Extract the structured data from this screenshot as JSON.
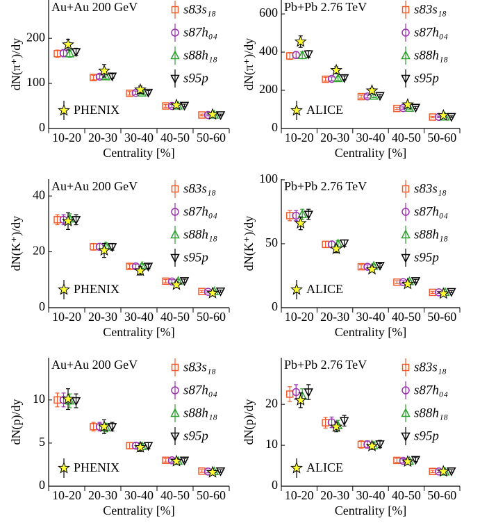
{
  "chart_data": [
    {
      "type": "errorbar",
      "annotation": "Au+Au 200 GeV",
      "ylabel": "dN(π⁺)/dy",
      "xlabel": "Centrality [%]",
      "categories": [
        "10-20",
        "20-30",
        "30-40",
        "40-50",
        "50-60"
      ],
      "ylim": [
        0,
        285
      ],
      "yticks": [
        0,
        100,
        200
      ],
      "series": [
        {
          "name": "s83s₁₈",
          "color": "#f05a28",
          "marker": "square",
          "values": [
            166,
            113,
            78,
            50,
            30
          ],
          "errors": [
            8,
            5,
            4,
            3,
            2
          ]
        },
        {
          "name": "s87h₀₄",
          "color": "#9b30b0",
          "marker": "circle",
          "values": [
            167,
            115,
            79,
            50,
            30
          ],
          "errors": [
            8,
            5,
            4,
            3,
            2
          ]
        },
        {
          "name": "s88h₁₈",
          "color": "#2ca02c",
          "marker": "triangle-up",
          "values": [
            166,
            115,
            79,
            50,
            30
          ],
          "errors": [
            8,
            5,
            4,
            3,
            2
          ]
        },
        {
          "name": "s95p",
          "color": "#000000",
          "marker": "triangle-down",
          "values": [
            170,
            116,
            80,
            51,
            30
          ],
          "errors": [
            8,
            5,
            4,
            3,
            2
          ]
        }
      ],
      "experiment": {
        "name": "PHENIX",
        "color": "#ffff33",
        "marker": "star",
        "values": [
          186,
          128,
          86,
          52,
          31
        ],
        "errors": [
          12,
          14,
          8,
          4,
          2
        ]
      }
    },
    {
      "type": "errorbar",
      "annotation": "Pb+Pb 2.76 TeV",
      "ylabel": "dN(π⁺)/dy",
      "xlabel": "Centrality [%]",
      "categories": [
        "10-20",
        "20-30",
        "30-40",
        "40-50",
        "50-60"
      ],
      "ylim": [
        0,
        673
      ],
      "yticks": [
        0,
        200,
        400,
        600
      ],
      "series": [
        {
          "name": "s83s₁₈",
          "color": "#f05a28",
          "marker": "square",
          "values": [
            380,
            258,
            167,
            105,
            60
          ],
          "errors": [
            18,
            10,
            8,
            6,
            4
          ]
        },
        {
          "name": "s87h₀₄",
          "color": "#9b30b0",
          "marker": "circle",
          "values": [
            385,
            260,
            168,
            107,
            61
          ],
          "errors": [
            18,
            10,
            8,
            6,
            4
          ]
        },
        {
          "name": "s88h₁₈",
          "color": "#2ca02c",
          "marker": "triangle-up",
          "values": [
            383,
            262,
            170,
            107,
            61
          ],
          "errors": [
            18,
            10,
            8,
            6,
            4
          ]
        },
        {
          "name": "s95p",
          "color": "#000000",
          "marker": "triangle-down",
          "values": [
            390,
            265,
            172,
            110,
            62
          ],
          "errors": [
            18,
            10,
            8,
            6,
            4
          ]
        }
      ],
      "experiment": {
        "name": "ALICE",
        "color": "#ffff33",
        "marker": "star",
        "values": [
          455,
          305,
          198,
          125,
          68
        ],
        "errors": [
          30,
          18,
          12,
          9,
          5
        ]
      }
    },
    {
      "type": "errorbar",
      "annotation": "Au+Au 200 GeV",
      "ylabel": "dN(K⁺)/dy",
      "xlabel": "Centrality [%]",
      "categories": [
        "10-20",
        "20-30",
        "30-40",
        "40-50",
        "50-60"
      ],
      "ylim": [
        0,
        46
      ],
      "yticks": [
        0,
        20,
        40
      ],
      "series": [
        {
          "name": "s83s₁₈",
          "color": "#f05a28",
          "marker": "square",
          "values": [
            31.5,
            21.8,
            14.8,
            9.5,
            5.8
          ],
          "errors": [
            1.8,
            1.2,
            0.8,
            0.6,
            0.4
          ]
        },
        {
          "name": "s87h₀₄",
          "color": "#9b30b0",
          "marker": "circle",
          "values": [
            31.5,
            21.8,
            14.8,
            9.4,
            5.7
          ],
          "errors": [
            1.8,
            1.2,
            0.8,
            0.6,
            0.4
          ]
        },
        {
          "name": "s88h₁₈",
          "color": "#2ca02c",
          "marker": "triangle-up",
          "values": [
            31.8,
            22,
            14.9,
            9.5,
            5.8
          ],
          "errors": [
            1.8,
            1.2,
            0.8,
            0.6,
            0.4
          ]
        },
        {
          "name": "s95p",
          "color": "#000000",
          "marker": "triangle-down",
          "values": [
            31.5,
            21.8,
            14.8,
            9.6,
            5.9
          ],
          "errors": [
            1.8,
            1.2,
            0.8,
            0.6,
            0.4
          ]
        }
      ],
      "experiment": {
        "name": "PHENIX",
        "color": "#ffff33",
        "marker": "star",
        "values": [
          31,
          20.5,
          13.2,
          8.2,
          5.2
        ],
        "errors": [
          3,
          2.5,
          1.5,
          1,
          0.6
        ]
      }
    },
    {
      "type": "errorbar",
      "annotation": "Pb+Pb 2.76 TeV",
      "ylabel": "dN(K⁺)/dy",
      "xlabel": "Centrality [%]",
      "categories": [
        "10-20",
        "20-30",
        "30-40",
        "40-50",
        "50-60"
      ],
      "ylim": [
        0,
        100.5
      ],
      "yticks": [
        0,
        50,
        100
      ],
      "series": [
        {
          "name": "s83s₁₈",
          "color": "#f05a28",
          "marker": "square",
          "values": [
            72,
            49.5,
            32,
            20,
            12
          ],
          "errors": [
            4,
            2.5,
            1.6,
            1.1,
            0.8
          ]
        },
        {
          "name": "s87h₀₄",
          "color": "#9b30b0",
          "marker": "circle",
          "values": [
            72,
            49.5,
            32,
            20,
            12
          ],
          "errors": [
            4,
            2.5,
            1.6,
            1.1,
            0.8
          ]
        },
        {
          "name": "s88h₁₈",
          "color": "#2ca02c",
          "marker": "triangle-up",
          "values": [
            73,
            50,
            32.5,
            20.5,
            12
          ],
          "errors": [
            4,
            2.5,
            1.6,
            1.1,
            0.8
          ]
        },
        {
          "name": "s95p",
          "color": "#000000",
          "marker": "triangle-down",
          "values": [
            73,
            50.5,
            33,
            21,
            12.5
          ],
          "errors": [
            4,
            2.5,
            1.6,
            1.1,
            0.8
          ]
        }
      ],
      "experiment": {
        "name": "ALICE",
        "color": "#ffff33",
        "marker": "star",
        "values": [
          66,
          46,
          30,
          18.5,
          11
        ],
        "errors": [
          5,
          3,
          2,
          1.5,
          1
        ]
      }
    },
    {
      "type": "errorbar",
      "annotation": "Au+Au 200 GeV",
      "ylabel": "dN(p)/dy",
      "xlabel": "Centrality [%]",
      "categories": [
        "10-20",
        "20-30",
        "30-40",
        "40-50",
        "50-60"
      ],
      "ylim": [
        0,
        14.9
      ],
      "yticks": [
        0,
        5,
        10
      ],
      "series": [
        {
          "name": "s83s₁₈",
          "color": "#f05a28",
          "marker": "square",
          "values": [
            10,
            6.9,
            4.7,
            3.0,
            1.75
          ],
          "errors": [
            0.8,
            0.5,
            0.35,
            0.2,
            0.15
          ]
        },
        {
          "name": "s87h₀₄",
          "color": "#9b30b0",
          "marker": "circle",
          "values": [
            10,
            6.9,
            4.7,
            3.0,
            1.7
          ],
          "errors": [
            0.8,
            0.5,
            0.35,
            0.2,
            0.15
          ]
        },
        {
          "name": "s88h₁₈",
          "color": "#2ca02c",
          "marker": "triangle-up",
          "values": [
            9.9,
            6.8,
            4.6,
            2.9,
            1.7
          ],
          "errors": [
            0.8,
            0.5,
            0.35,
            0.2,
            0.15
          ]
        },
        {
          "name": "s95p",
          "color": "#000000",
          "marker": "triangle-down",
          "values": [
            9.9,
            6.9,
            4.7,
            3.0,
            1.75
          ],
          "errors": [
            0.8,
            0.5,
            0.35,
            0.2,
            0.15
          ]
        }
      ],
      "experiment": {
        "name": "PHENIX",
        "color": "#ffff33",
        "marker": "star",
        "values": [
          10.1,
          6.9,
          4.5,
          2.9,
          1.6
        ],
        "errors": [
          1.2,
          0.8,
          0.5,
          0.3,
          0.2
        ]
      }
    },
    {
      "type": "errorbar",
      "annotation": "Pb+Pb 2.76 TeV",
      "ylabel": "dN(p)/dy",
      "xlabel": "Centrality [%]",
      "categories": [
        "10-20",
        "20-30",
        "30-40",
        "40-50",
        "50-60"
      ],
      "ylim": [
        0,
        31.4
      ],
      "yticks": [
        0,
        10,
        20
      ],
      "series": [
        {
          "name": "s83s₁₈",
          "color": "#f05a28",
          "marker": "square",
          "values": [
            22.5,
            15.5,
            10.2,
            6.3,
            3.6
          ],
          "errors": [
            1.8,
            1.3,
            0.9,
            0.5,
            0.3
          ]
        },
        {
          "name": "s87h₀₄",
          "color": "#9b30b0",
          "marker": "circle",
          "values": [
            23,
            15.6,
            10.2,
            6.2,
            3.6
          ],
          "errors": [
            1.8,
            1.3,
            0.9,
            0.5,
            0.3
          ]
        },
        {
          "name": "s88h₁₈",
          "color": "#2ca02c",
          "marker": "triangle-up",
          "values": [
            22,
            14.8,
            9.9,
            6.1,
            3.5
          ],
          "errors": [
            1.8,
            1.3,
            0.9,
            0.5,
            0.3
          ]
        },
        {
          "name": "s95p",
          "color": "#000000",
          "marker": "triangle-down",
          "values": [
            23,
            16,
            10.3,
            6.5,
            3.7
          ],
          "errors": [
            1.8,
            1.3,
            0.9,
            0.5,
            0.3
          ]
        }
      ],
      "experiment": {
        "name": "ALICE",
        "color": "#ffff33",
        "marker": "star",
        "values": [
          21,
          14.5,
          9.8,
          6.0,
          3.6
        ],
        "errors": [
          1.8,
          1.2,
          0.8,
          0.5,
          0.3
        ]
      }
    }
  ]
}
